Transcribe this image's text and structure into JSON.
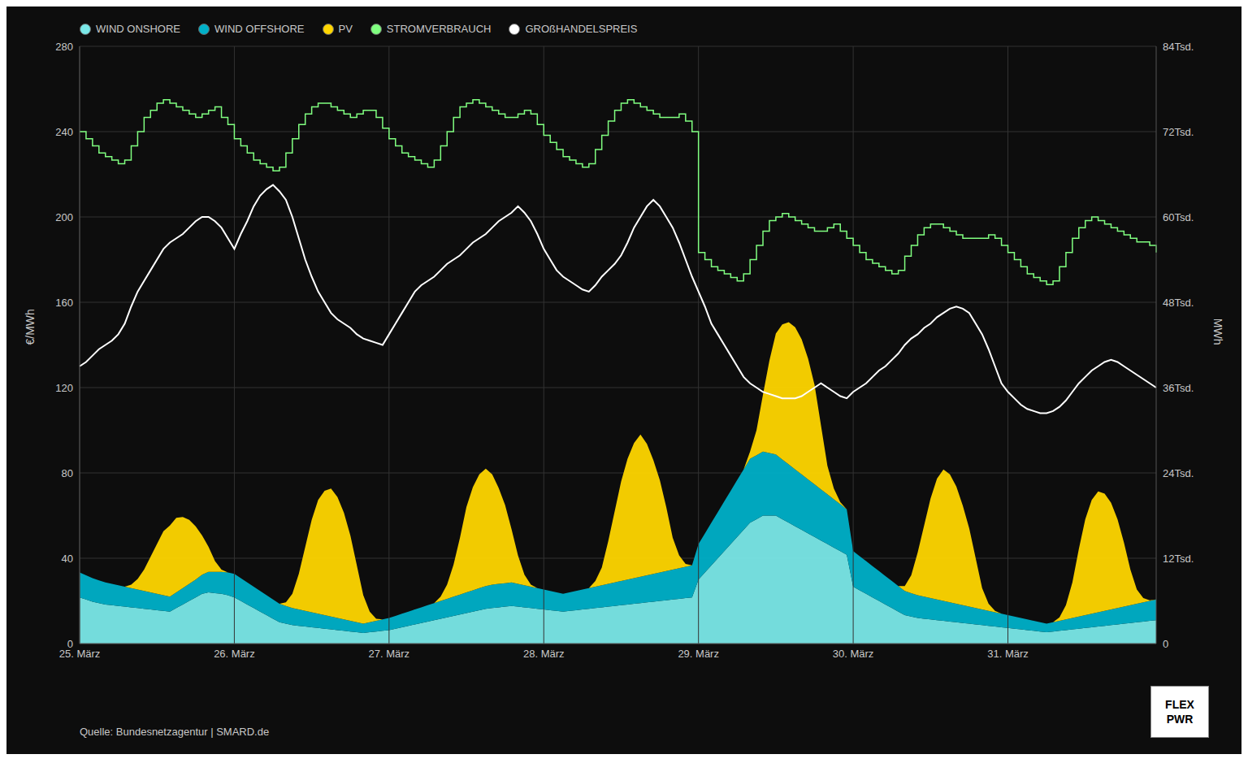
{
  "chart_data": {
    "type": "area",
    "ylabel": "€/MWh",
    "y2label": "MWh",
    "categories": [
      "25. März",
      null,
      null,
      null,
      null,
      null,
      null,
      null,
      null,
      null,
      null,
      null,
      null,
      null,
      null,
      null,
      null,
      null,
      null,
      null,
      null,
      null,
      null,
      null,
      "26. März",
      null,
      null,
      null,
      null,
      null,
      null,
      null,
      null,
      null,
      null,
      null,
      null,
      null,
      null,
      null,
      null,
      null,
      null,
      null,
      null,
      null,
      null,
      null,
      "27. März",
      null,
      null,
      null,
      null,
      null,
      null,
      null,
      null,
      null,
      null,
      null,
      null,
      null,
      null,
      null,
      null,
      null,
      null,
      null,
      null,
      null,
      null,
      null,
      "28. März",
      null,
      null,
      null,
      null,
      null,
      null,
      null,
      null,
      null,
      null,
      null,
      null,
      null,
      null,
      null,
      null,
      null,
      null,
      null,
      null,
      null,
      null,
      null,
      "29. März",
      null,
      null,
      null,
      null,
      null,
      null,
      null,
      null,
      null,
      null,
      null,
      null,
      null,
      null,
      null,
      null,
      null,
      null,
      null,
      null,
      null,
      null,
      null,
      "30. März",
      null,
      null,
      null,
      null,
      null,
      null,
      null,
      null,
      null,
      null,
      null,
      null,
      null,
      null,
      null,
      null,
      null,
      null,
      null,
      null,
      null,
      null,
      null,
      "31. März",
      null,
      null,
      null,
      null,
      null,
      null,
      null,
      null,
      null,
      null,
      null,
      null,
      null,
      null,
      null,
      null,
      null,
      null,
      null,
      null,
      null,
      null,
      null
    ],
    "series": [
      {
        "name": "WIND ONSHORE",
        "color": "#7ae8e8",
        "type": "area",
        "axis": "y2",
        "values": [
          6500,
          6200,
          5900,
          5700,
          5500,
          5400,
          5300,
          5200,
          5100,
          5000,
          4900,
          4800,
          4700,
          4600,
          4500,
          5000,
          5500,
          6000,
          6500,
          7000,
          7200,
          7100,
          7000,
          6800,
          6500,
          6000,
          5500,
          5000,
          4500,
          4000,
          3500,
          3000,
          2800,
          2600,
          2500,
          2400,
          2300,
          2200,
          2100,
          2000,
          1900,
          1800,
          1700,
          1600,
          1500,
          1600,
          1700,
          1800,
          1900,
          2100,
          2300,
          2500,
          2700,
          2900,
          3100,
          3300,
          3500,
          3700,
          3900,
          4100,
          4300,
          4500,
          4700,
          4900,
          5000,
          5100,
          5200,
          5300,
          5200,
          5100,
          5000,
          4900,
          4800,
          4700,
          4600,
          4500,
          4600,
          4700,
          4800,
          4900,
          5000,
          5100,
          5200,
          5300,
          5400,
          5500,
          5600,
          5700,
          5800,
          5900,
          6000,
          6100,
          6200,
          6300,
          6400,
          6500,
          9000,
          10000,
          11000,
          12000,
          13000,
          14000,
          15000,
          16000,
          17000,
          17500,
          18000,
          18000,
          18000,
          17500,
          17000,
          16500,
          16000,
          15500,
          15000,
          14500,
          14000,
          13500,
          13000,
          12500,
          8000,
          7500,
          7000,
          6500,
          6000,
          5500,
          5000,
          4500,
          4000,
          3800,
          3600,
          3500,
          3400,
          3300,
          3200,
          3100,
          3000,
          2900,
          2800,
          2700,
          2600,
          2500,
          2400,
          2300,
          2200,
          2100,
          2000,
          1900,
          1800,
          1700,
          1600,
          1700,
          1800,
          1900,
          2000,
          2100,
          2200,
          2300,
          2400,
          2500,
          2600,
          2700,
          2800,
          2900,
          3000,
          3100,
          3200,
          3300
        ]
      },
      {
        "name": "WIND OFFSHORE",
        "color": "#00b0c8",
        "type": "area",
        "axis": "y2",
        "values": [
          3500,
          3400,
          3300,
          3200,
          3100,
          3000,
          2900,
          2800,
          2700,
          2600,
          2500,
          2400,
          2300,
          2200,
          2100,
          2200,
          2300,
          2400,
          2500,
          2700,
          2900,
          3000,
          3100,
          3200,
          3300,
          3200,
          3100,
          3000,
          2900,
          2800,
          2700,
          2600,
          2500,
          2400,
          2300,
          2200,
          2100,
          2000,
          1900,
          1800,
          1700,
          1600,
          1500,
          1400,
          1300,
          1400,
          1500,
          1600,
          1700,
          1800,
          1900,
          2000,
          2100,
          2200,
          2300,
          2400,
          2500,
          2600,
          2700,
          2800,
          2900,
          3000,
          3100,
          3200,
          3300,
          3300,
          3300,
          3300,
          3200,
          3100,
          3000,
          2900,
          2800,
          2700,
          2600,
          2500,
          2600,
          2700,
          2800,
          2900,
          3000,
          3100,
          3200,
          3300,
          3400,
          3500,
          3600,
          3700,
          3800,
          3900,
          4000,
          4100,
          4200,
          4300,
          4400,
          4500,
          5000,
          5500,
          6000,
          6500,
          7000,
          7500,
          8000,
          8500,
          9000,
          9000,
          9000,
          8800,
          8600,
          8400,
          8200,
          8000,
          7800,
          7600,
          7400,
          7200,
          7000,
          6800,
          6600,
          6400,
          5000,
          4800,
          4600,
          4400,
          4200,
          4000,
          3800,
          3600,
          3400,
          3300,
          3200,
          3100,
          3000,
          2900,
          2800,
          2700,
          2600,
          2500,
          2400,
          2300,
          2200,
          2100,
          2000,
          1900,
          1800,
          1700,
          1600,
          1500,
          1400,
          1300,
          1200,
          1300,
          1400,
          1500,
          1600,
          1700,
          1800,
          1900,
          2000,
          2100,
          2200,
          2300,
          2400,
          2500,
          2600,
          2700,
          2800,
          2900
        ]
      },
      {
        "name": "PV",
        "color": "#ffd600",
        "type": "area",
        "axis": "y2",
        "values": [
          0,
          0,
          0,
          0,
          0,
          0,
          0,
          0,
          500,
          1500,
          3000,
          5000,
          7000,
          9000,
          10000,
          10500,
          10000,
          9000,
          7500,
          5500,
          3500,
          1500,
          300,
          0,
          0,
          0,
          0,
          0,
          0,
          0,
          0,
          0,
          500,
          2000,
          5000,
          9000,
          13000,
          16000,
          17500,
          18000,
          17000,
          15000,
          12000,
          8000,
          4000,
          1500,
          300,
          0,
          0,
          0,
          0,
          0,
          0,
          0,
          0,
          0,
          600,
          2000,
          4500,
          8000,
          12000,
          14500,
          16000,
          16500,
          15500,
          13500,
          11000,
          7500,
          4000,
          1500,
          300,
          0,
          0,
          0,
          0,
          0,
          0,
          0,
          0,
          0,
          800,
          2500,
          6000,
          10000,
          14000,
          17000,
          19000,
          20000,
          18500,
          16000,
          13000,
          9000,
          4500,
          1800,
          400,
          0,
          0,
          0,
          0,
          0,
          0,
          0,
          0,
          0,
          1000,
          3500,
          8000,
          13000,
          17000,
          19000,
          20000,
          20000,
          19000,
          17000,
          14000,
          9000,
          4000,
          1500,
          300,
          0,
          0,
          0,
          0,
          0,
          0,
          0,
          0,
          0,
          700,
          2500,
          6000,
          10000,
          14000,
          17000,
          18500,
          18000,
          16500,
          14000,
          11000,
          7000,
          3000,
          1000,
          200,
          0,
          0,
          0,
          0,
          0,
          0,
          0,
          0,
          0,
          500,
          2000,
          5000,
          9500,
          13500,
          16000,
          17000,
          16500,
          15000,
          12500,
          9000,
          5000,
          2000,
          600,
          100,
          0
        ]
      },
      {
        "name": "STROMVERBRAUCH",
        "color": "#80ff80",
        "type": "step",
        "axis": "y2",
        "values": [
          72000,
          71000,
          70000,
          69000,
          68500,
          68000,
          67500,
          68000,
          70000,
          72000,
          74000,
          75000,
          76000,
          76500,
          76000,
          75500,
          75000,
          74500,
          74000,
          74500,
          75000,
          75500,
          74000,
          73000,
          71000,
          70000,
          69000,
          68000,
          67500,
          67000,
          66500,
          67000,
          69000,
          71000,
          73000,
          74500,
          75500,
          76000,
          76000,
          75500,
          75000,
          74500,
          74000,
          74500,
          75000,
          75000,
          74000,
          72500,
          71000,
          70000,
          69000,
          68500,
          68000,
          67500,
          67000,
          68000,
          70000,
          72000,
          74000,
          75500,
          76000,
          76500,
          76000,
          75500,
          75000,
          74500,
          74000,
          74000,
          74500,
          75000,
          74500,
          73000,
          71500,
          70500,
          69500,
          68500,
          68000,
          67500,
          67000,
          67500,
          69500,
          71500,
          73500,
          75000,
          76000,
          76500,
          76000,
          75500,
          75000,
          74500,
          74000,
          74000,
          74000,
          74500,
          73500,
          72000,
          55000,
          54000,
          53000,
          52500,
          52000,
          51500,
          51000,
          52000,
          54000,
          56000,
          58000,
          59500,
          60000,
          60500,
          60000,
          59500,
          59000,
          58500,
          58000,
          58000,
          58500,
          59000,
          58000,
          57000,
          56000,
          55000,
          54000,
          53500,
          53000,
          52500,
          52000,
          52500,
          54500,
          56000,
          57500,
          58500,
          59000,
          59000,
          58500,
          58000,
          57500,
          57000,
          57000,
          57000,
          57000,
          57500,
          57000,
          56000,
          55000,
          54000,
          53000,
          52000,
          51500,
          51000,
          50500,
          51000,
          53000,
          55000,
          57000,
          58500,
          59500,
          60000,
          59500,
          59000,
          58500,
          58000,
          57500,
          57000,
          56500,
          56500,
          56000,
          55000
        ]
      },
      {
        "name": "GROßHANDELSPREIS",
        "color": "#ffffff",
        "type": "line",
        "values": [
          130,
          132,
          135,
          138,
          140,
          142,
          145,
          150,
          158,
          165,
          170,
          175,
          180,
          185,
          188,
          190,
          192,
          195,
          198,
          200,
          200,
          198,
          195,
          190,
          185,
          192,
          198,
          205,
          210,
          213,
          215,
          212,
          208,
          200,
          190,
          180,
          172,
          165,
          160,
          155,
          152,
          150,
          148,
          145,
          143,
          142,
          141,
          140,
          145,
          150,
          155,
          160,
          165,
          168,
          170,
          172,
          175,
          178,
          180,
          182,
          185,
          188,
          190,
          192,
          195,
          198,
          200,
          202,
          205,
          202,
          198,
          192,
          185,
          180,
          175,
          172,
          170,
          168,
          166,
          165,
          168,
          172,
          175,
          178,
          182,
          188,
          195,
          200,
          205,
          208,
          205,
          200,
          195,
          188,
          180,
          172,
          165,
          158,
          150,
          145,
          140,
          135,
          130,
          125,
          122,
          120,
          118,
          117,
          116,
          115,
          115,
          115,
          116,
          118,
          120,
          122,
          120,
          118,
          116,
          115,
          118,
          120,
          122,
          125,
          128,
          130,
          133,
          136,
          140,
          143,
          145,
          148,
          150,
          153,
          155,
          157,
          158,
          157,
          155,
          150,
          145,
          138,
          130,
          122,
          118,
          115,
          112,
          110,
          109,
          108,
          108,
          109,
          111,
          114,
          118,
          122,
          125,
          128,
          130,
          132,
          133,
          132,
          130,
          128,
          126,
          124,
          122,
          120
        ]
      }
    ],
    "stacked": true,
    "ylim": [
      0,
      280
    ],
    "yticks": [
      0,
      40,
      80,
      120,
      160,
      200,
      240,
      280
    ],
    "y2lim": [
      0,
      84000
    ],
    "y2ticks": [
      0,
      {
        "value": 12000,
        "label": "12Tsd."
      },
      {
        "value": 24000,
        "label": "24Tsd."
      },
      {
        "value": 36000,
        "label": "36Tsd."
      },
      {
        "value": 48000,
        "label": "48Tsd."
      },
      {
        "value": 60000,
        "label": "60Tsd."
      },
      {
        "value": 72000,
        "label": "72Tsd."
      },
      {
        "value": 84000,
        "label": "84Tsd."
      }
    ],
    "grid": true,
    "legend": "upper left",
    "annotations": [
      "Quelle: Bundesnetzagentur | SMARD.de",
      "FLEX",
      "PWR"
    ]
  }
}
